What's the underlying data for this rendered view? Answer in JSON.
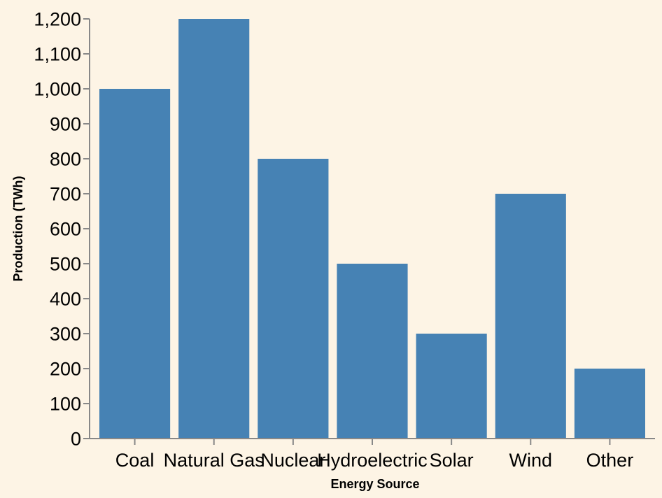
{
  "chart_data": {
    "type": "bar",
    "categories": [
      "Coal",
      "Natural Gas",
      "Nuclear",
      "Hydroelectric",
      "Solar",
      "Wind",
      "Other"
    ],
    "values": [
      1000,
      1200,
      800,
      500,
      300,
      700,
      200
    ],
    "xlabel": "Energy Source",
    "ylabel": "Production (TWh)",
    "ylim": [
      0,
      1200
    ],
    "yticks": [
      0,
      100,
      200,
      300,
      400,
      500,
      600,
      700,
      800,
      900,
      1000,
      1100,
      1200
    ],
    "grid": false,
    "colors": {
      "bar": "#4682b4",
      "background": "#fdf4e5",
      "axis": "#888888"
    }
  }
}
